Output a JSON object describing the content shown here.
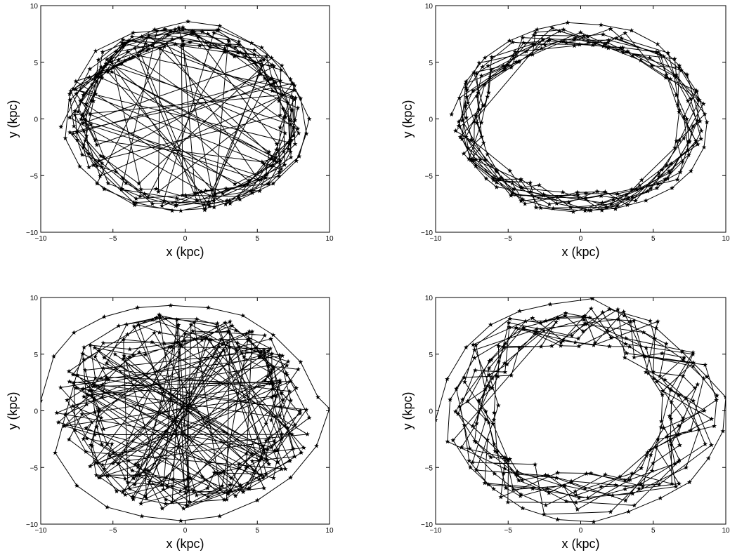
{
  "chart_data": [
    {
      "type": "scatter",
      "panel": "top-left",
      "xlabel": "x (kpc)",
      "ylabel": "y (kpc)",
      "xlim": [
        -10,
        10
      ],
      "ylim": [
        -10,
        10
      ],
      "xticks": [
        "−10",
        "−5",
        "0",
        "5",
        "10"
      ],
      "yticks": [
        "−10",
        "−5",
        "0",
        "5",
        "10"
      ],
      "grid": false,
      "marker": "star",
      "connected": true,
      "ring": {
        "rx": 7.4,
        "ry": 7.3,
        "spread": 0.9,
        "n": 260,
        "cross": 0.25,
        "seed": 11
      },
      "x": [
        -8.6,
        -6.6,
        -4.3,
        -2.1,
        0.2,
        2.4,
        4.6,
        6.7,
        8.0,
        8.4,
        7.7,
        6.1,
        3.8,
        1.4,
        -0.9,
        -3.4,
        -5.6,
        -7.3,
        -8.3,
        -8.0,
        -6.2,
        -3.6,
        -0.7,
        2.3,
        5.3,
        7.3,
        8.6,
        7.9,
        5.8,
        2.9,
        -0.3,
        -3.5,
        -6.1
      ],
      "y": [
        -0.7,
        4.4,
        6.5,
        7.9,
        8.6,
        8.2,
        6.7,
        4.7,
        1.8,
        -1.3,
        -3.7,
        -5.7,
        -7.1,
        -7.9,
        -8.1,
        -7.4,
        -6.2,
        -4.2,
        -1.7,
        2.2,
        6.0,
        7.6,
        7.9,
        7.9,
        6.3,
        3.5,
        0.0,
        -3.3,
        -5.7,
        -7.2,
        -8.1,
        -7.6,
        -5.7
      ],
      "color": "#000000"
    },
    {
      "type": "scatter",
      "panel": "top-right",
      "xlabel": "x (kpc)",
      "ylabel": "y (kpc)",
      "xlim": [
        -10,
        10
      ],
      "ylim": [
        -10,
        10
      ],
      "xticks": [
        "−10",
        "−5",
        "0",
        "5",
        "10"
      ],
      "yticks": [
        "−10",
        "−5",
        "0",
        "5",
        "10"
      ],
      "grid": false,
      "marker": "star",
      "connected": true,
      "ring": {
        "rx": 7.7,
        "ry": 7.4,
        "spread": 1.0,
        "n": 230,
        "cross": 0.0,
        "seed": 23
      },
      "x": [
        -8.9,
        -7.9,
        -6.6,
        -4.9,
        -3.0,
        -0.9,
        1.4,
        3.5,
        5.3,
        6.8,
        8.0,
        8.7,
        8.5,
        7.6,
        6.3,
        4.5,
        2.4,
        0.3,
        -1.9,
        -4.0,
        -5.8,
        -7.2,
        -8.3
      ],
      "y": [
        0.4,
        3.3,
        5.4,
        6.9,
        7.9,
        8.5,
        8.3,
        7.8,
        6.6,
        4.7,
        2.4,
        -0.3,
        -2.5,
        -4.6,
        -6.1,
        -7.2,
        -7.9,
        -8.1,
        -7.9,
        -7.1,
        -5.6,
        -3.6,
        -1.6
      ],
      "color": "#000000"
    },
    {
      "type": "scatter",
      "panel": "bottom-left",
      "xlabel": "x (kpc)",
      "ylabel": "y (kpc)",
      "xlim": [
        -10,
        10
      ],
      "ylim": [
        -10,
        10
      ],
      "xticks": [
        "−10",
        "−5",
        "0",
        "5",
        "10"
      ],
      "yticks": [
        "−10",
        "−5",
        "0",
        "5",
        "10"
      ],
      "grid": false,
      "marker": "star",
      "connected": true,
      "ring": {
        "rx": 7.3,
        "ry": 7.2,
        "spread": 1.6,
        "n": 300,
        "cross": 0.35,
        "seed": 37
      },
      "x": [
        -10.0,
        -9.1,
        -7.7,
        -5.6,
        -3.3,
        -1.0,
        1.6,
        4.0,
        6.1,
        8.0,
        9.2,
        10.0,
        9.1,
        7.3,
        5.0,
        2.4,
        -0.3,
        -3.0,
        -5.4,
        -7.5,
        -9.0,
        -7.0,
        -4.6,
        -2.0,
        0.8,
        3.5,
        5.9
      ],
      "y": [
        0.9,
        4.8,
        6.9,
        8.3,
        9.1,
        9.3,
        9.1,
        8.4,
        6.7,
        4.3,
        1.2,
        0.2,
        -3.1,
        -5.9,
        -7.9,
        -9.3,
        -9.7,
        -9.3,
        -8.5,
        -6.6,
        -3.7,
        5.6,
        7.5,
        8.2,
        8.1,
        7.1,
        5.5
      ],
      "color": "#000000"
    },
    {
      "type": "scatter",
      "panel": "bottom-right",
      "xlabel": "x (kpc)",
      "ylabel": "y (kpc)",
      "xlim": [
        -10,
        10
      ],
      "ylim": [
        -10,
        10
      ],
      "xticks": [
        "−10",
        "−5",
        "0",
        "5",
        "10"
      ],
      "yticks": [
        "−10",
        "−5",
        "0",
        "5",
        "10"
      ],
      "grid": false,
      "marker": "star",
      "connected": true,
      "ring": {
        "rx": 7.6,
        "ry": 7.5,
        "spread": 2.0,
        "n": 250,
        "cross": 0.0,
        "seed": 53
      },
      "x": [
        -10.0,
        -9.2,
        -7.9,
        -6.2,
        -4.2,
        -2.1,
        0.8,
        3.0,
        5.2,
        7.0,
        8.7,
        10.0,
        9.8,
        8.8,
        7.5,
        5.5,
        3.3,
        0.9,
        -1.6,
        -4.0,
        -6.0,
        -7.6,
        -8.8
      ],
      "y": [
        -0.8,
        2.8,
        5.6,
        7.6,
        8.8,
        9.4,
        9.9,
        8.4,
        7.3,
        5.2,
        3.0,
        1.2,
        -1.8,
        -4.2,
        -6.3,
        -7.7,
        -8.9,
        -9.8,
        -9.6,
        -8.6,
        -6.9,
        -5.0,
        -2.6
      ],
      "color": "#000000"
    }
  ]
}
